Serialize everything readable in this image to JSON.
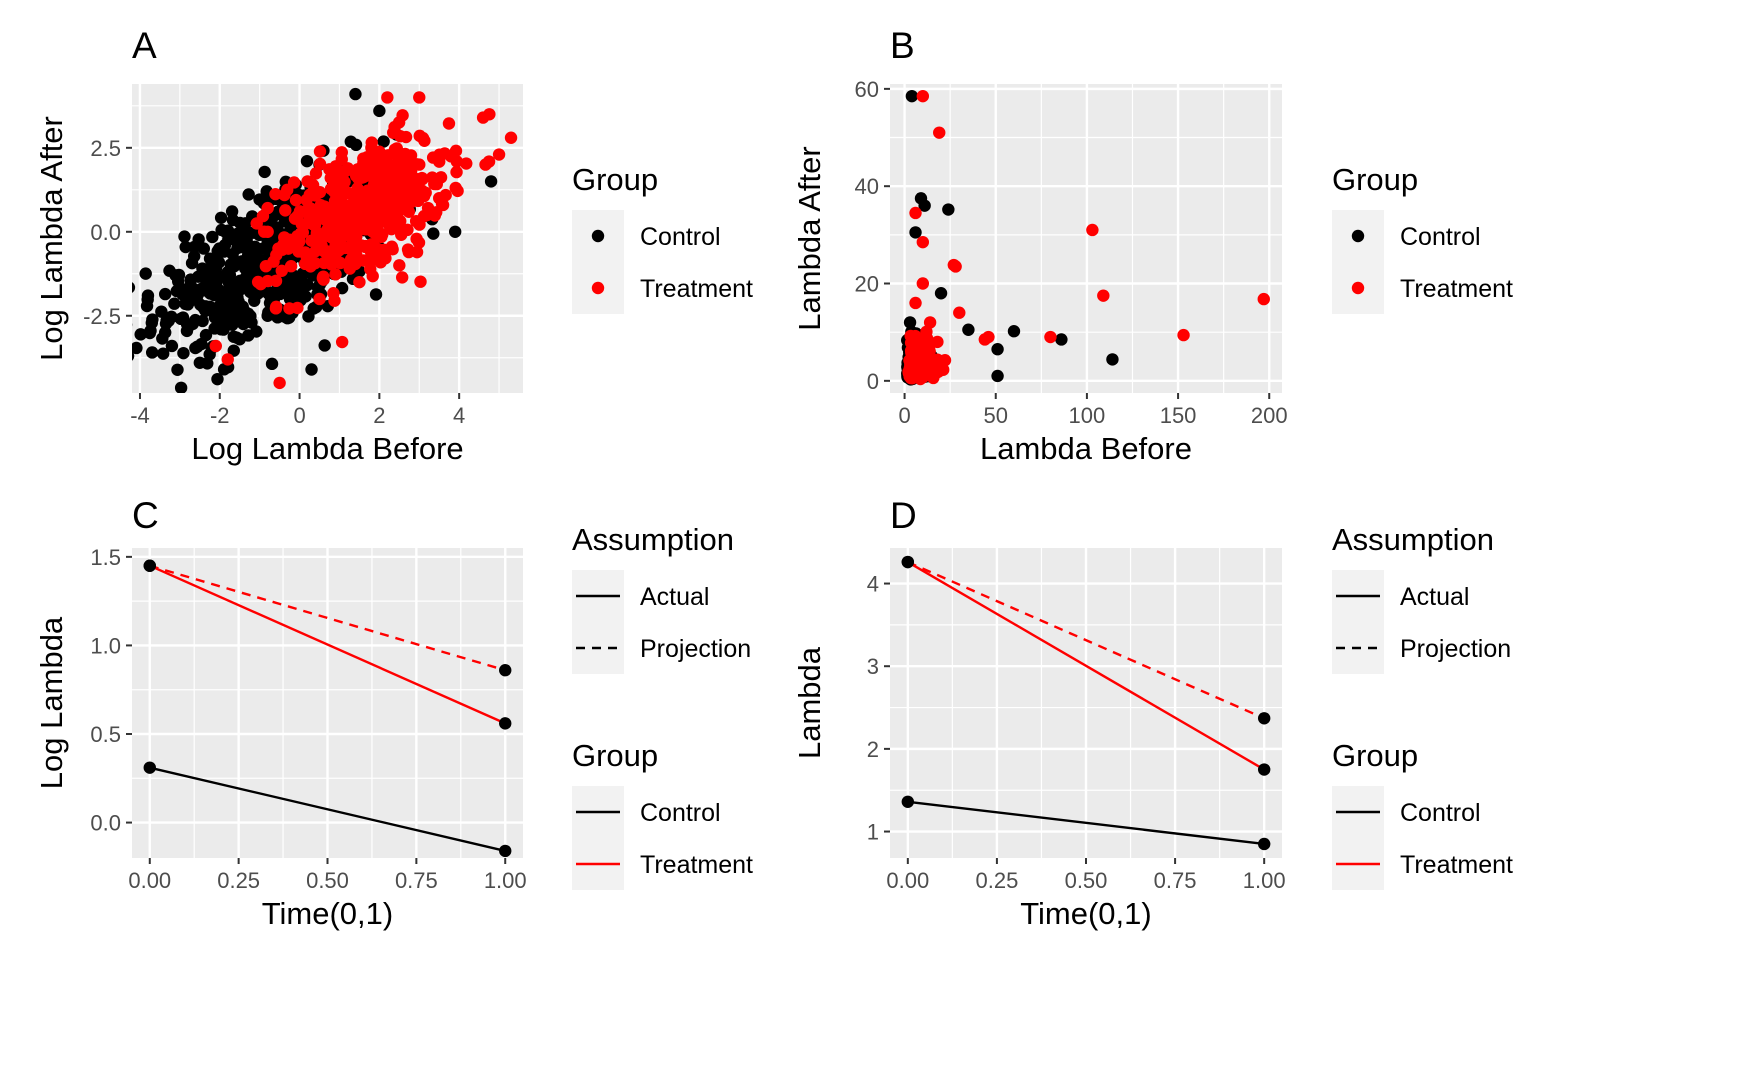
{
  "colors": {
    "Control": "#000000",
    "Treatment": "#ff0000",
    "panel_bg": "#ebebeb",
    "grid": "#ffffff"
  },
  "chart_data": [
    {
      "panel": "A",
      "type": "scatter",
      "xlabel": "Log Lambda Before",
      "ylabel": "Log Lambda After",
      "xlim": [
        -4.2,
        5.6
      ],
      "ylim": [
        -4.8,
        4.4
      ],
      "xticks": [
        -4,
        -2,
        0,
        2,
        4
      ],
      "yticks": [
        -2.5,
        0.0,
        2.5
      ],
      "ytick_labels": [
        "-2.5",
        "0.0",
        "2.5"
      ],
      "grid": true,
      "legend": {
        "title": "Group",
        "position": "right",
        "entries": [
          "Control",
          "Treatment"
        ],
        "key": "point"
      },
      "series": [
        {
          "name": "Control",
          "sample_points": [
            [
              -1.8,
              -1.2
            ],
            [
              -2.4,
              -0.5
            ],
            [
              -3.8,
              -1.9
            ],
            [
              -3.2,
              -3.4
            ],
            [
              -2.5,
              -3.9
            ],
            [
              -1.0,
              0.3
            ],
            [
              0.3,
              -4.1
            ],
            [
              1.4,
              4.1
            ],
            [
              -0.8,
              -2.5
            ],
            [
              -1.2,
              -1.8
            ],
            [
              0.5,
              2.0
            ],
            [
              2.0,
              3.6
            ],
            [
              4.8,
              1.5
            ],
            [
              3.9,
              0.0
            ],
            [
              -0.3,
              0.8
            ],
            [
              1.0,
              1.0
            ],
            [
              -2.0,
              -2.2
            ],
            [
              -1.5,
              -3.2
            ],
            [
              0.8,
              -1.2
            ],
            [
              2.3,
              -0.5
            ]
          ]
        },
        {
          "name": "Treatment",
          "sample_points": [
            [
              1.0,
              1.2
            ],
            [
              2.0,
              0.5
            ],
            [
              3.0,
              2.0
            ],
            [
              4.6,
              3.4
            ],
            [
              5.3,
              2.8
            ],
            [
              5.0,
              2.3
            ],
            [
              2.2,
              4.0
            ],
            [
              3.0,
              4.0
            ],
            [
              -0.5,
              -4.5
            ],
            [
              -1.8,
              -3.8
            ],
            [
              -2.1,
              -3.4
            ],
            [
              -0.8,
              0.0
            ],
            [
              1.5,
              -1.5
            ],
            [
              0.5,
              -2.0
            ],
            [
              3.5,
              1.0
            ],
            [
              2.5,
              -1.0
            ],
            [
              0.2,
              1.5
            ],
            [
              1.8,
              2.5
            ],
            [
              3.2,
              0.5
            ],
            [
              0.8,
              0.2
            ]
          ]
        }
      ]
    },
    {
      "panel": "B",
      "type": "scatter",
      "xlabel": "Lambda Before",
      "ylabel": "Lambda After",
      "xlim": [
        -8,
        207
      ],
      "ylim": [
        -2.5,
        61
      ],
      "xticks": [
        0,
        50,
        100,
        150,
        200
      ],
      "yticks": [
        0,
        20,
        40,
        60
      ],
      "grid": true,
      "legend": {
        "title": "Group",
        "position": "right",
        "entries": [
          "Control",
          "Treatment"
        ],
        "key": "point"
      },
      "series": [
        {
          "name": "Control",
          "points": [
            [
              4,
              58.5
            ],
            [
              9,
              37.5
            ],
            [
              11,
              36
            ],
            [
              24,
              35.2
            ],
            [
              6,
              30.5
            ],
            [
              60,
              10.2
            ],
            [
              86,
              8.5
            ],
            [
              114,
              4.4
            ],
            [
              51,
              6.5
            ],
            [
              51,
              1.0
            ],
            [
              35,
              10.5
            ],
            [
              20,
              18
            ],
            [
              3,
              12
            ],
            [
              8,
              8
            ],
            [
              15,
              5
            ],
            [
              2,
              3
            ]
          ]
        },
        {
          "name": "Treatment",
          "points": [
            [
              10,
              58.5
            ],
            [
              19,
              51
            ],
            [
              6,
              34.5
            ],
            [
              10,
              28.5
            ],
            [
              103,
              31
            ],
            [
              109,
              17.5
            ],
            [
              197,
              16.8
            ],
            [
              153,
              9.4
            ],
            [
              80,
              9.0
            ],
            [
              27,
              23.8
            ],
            [
              28,
              23.5
            ],
            [
              30,
              14
            ],
            [
              44,
              8.5
            ],
            [
              46,
              9
            ],
            [
              14,
              12
            ],
            [
              18,
              8
            ],
            [
              6,
              16
            ],
            [
              10,
              20
            ],
            [
              4,
              6
            ]
          ]
        }
      ]
    },
    {
      "panel": "C",
      "type": "line",
      "xlabel": "Time(0,1)",
      "ylabel": "Log Lambda",
      "xlim": [
        -0.05,
        1.05
      ],
      "ylim": [
        -0.2,
        1.55
      ],
      "xticks": [
        0.0,
        0.25,
        0.5,
        0.75,
        1.0
      ],
      "xtick_labels": [
        "0.00",
        "0.25",
        "0.50",
        "0.75",
        "1.00"
      ],
      "yticks": [
        0.0,
        0.5,
        1.0,
        1.5
      ],
      "ytick_labels": [
        "0.0",
        "0.5",
        "1.0",
        "1.5"
      ],
      "grid": true,
      "legends": [
        {
          "title": "Assumption",
          "entries": [
            "Actual",
            "Projection"
          ],
          "key": "linetype"
        },
        {
          "title": "Group",
          "entries": [
            "Control",
            "Treatment"
          ],
          "key": "color"
        }
      ],
      "series": [
        {
          "name": "Control",
          "assumption": "Actual",
          "x": [
            0,
            1
          ],
          "y": [
            0.31,
            -0.16
          ]
        },
        {
          "name": "Treatment",
          "assumption": "Actual",
          "x": [
            0,
            1
          ],
          "y": [
            1.45,
            0.56
          ]
        },
        {
          "name": "Treatment",
          "assumption": "Projection",
          "x": [
            0,
            1
          ],
          "y": [
            1.45,
            0.86
          ]
        }
      ]
    },
    {
      "panel": "D",
      "type": "line",
      "xlabel": "Time(0,1)",
      "ylabel": "Lambda",
      "xlim": [
        -0.05,
        1.05
      ],
      "ylim": [
        0.68,
        4.43
      ],
      "xticks": [
        0.0,
        0.25,
        0.5,
        0.75,
        1.0
      ],
      "xtick_labels": [
        "0.00",
        "0.25",
        "0.50",
        "0.75",
        "1.00"
      ],
      "yticks": [
        1,
        2,
        3,
        4
      ],
      "grid": true,
      "legends": [
        {
          "title": "Assumption",
          "entries": [
            "Actual",
            "Projection"
          ],
          "key": "linetype"
        },
        {
          "title": "Group",
          "entries": [
            "Control",
            "Treatment"
          ],
          "key": "color"
        }
      ],
      "series": [
        {
          "name": "Control",
          "assumption": "Actual",
          "x": [
            0,
            1
          ],
          "y": [
            1.36,
            0.85
          ]
        },
        {
          "name": "Treatment",
          "assumption": "Actual",
          "x": [
            0,
            1
          ],
          "y": [
            4.26,
            1.75
          ]
        },
        {
          "name": "Treatment",
          "assumption": "Projection",
          "x": [
            0,
            1
          ],
          "y": [
            4.26,
            2.37
          ]
        }
      ]
    }
  ]
}
